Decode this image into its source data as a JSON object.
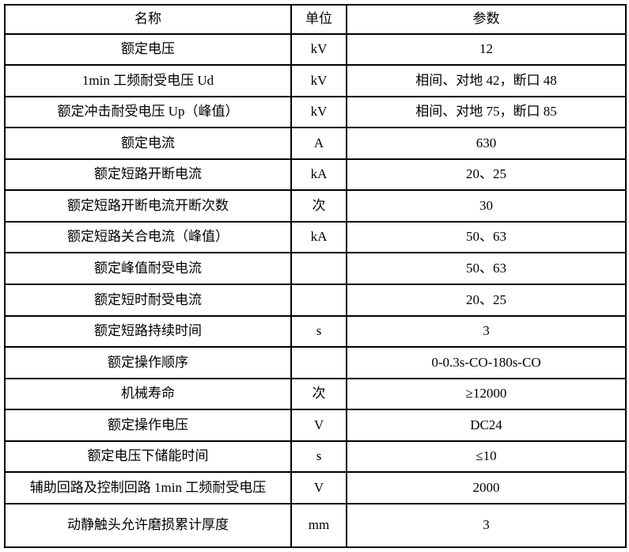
{
  "table": {
    "headers": [
      "名称",
      "单位",
      "参数"
    ],
    "rows": [
      {
        "name": "额定电压",
        "unit": "kV",
        "value": "12"
      },
      {
        "name": "1min 工频耐受电压 Ud",
        "unit": "kV",
        "value": "相间、对地 42，断口 48"
      },
      {
        "name": "额定冲击耐受电压 Up（峰值）",
        "unit": "kV",
        "value": "相间、对地 75，断口 85"
      },
      {
        "name": "额定电流",
        "unit": "A",
        "value": "630"
      },
      {
        "name": "额定短路开断电流",
        "unit": "kA",
        "value": "20、25"
      },
      {
        "name": "额定短路开断电流开断次数",
        "unit": "次",
        "value": "30"
      },
      {
        "name": "额定短路关合电流（峰值）",
        "unit": "kA",
        "value": "50、63"
      },
      {
        "name": "额定峰值耐受电流",
        "unit": "",
        "value": "50、63"
      },
      {
        "name": "额定短时耐受电流",
        "unit": "",
        "value": "20、25"
      },
      {
        "name": "额定短路持续时间",
        "unit": "s",
        "value": "3"
      },
      {
        "name": "额定操作顺序",
        "unit": "",
        "value": "0-0.3s-CO-180s-CO"
      },
      {
        "name": "机械寿命",
        "unit": "次",
        "value": "≥12000"
      },
      {
        "name": "额定操作电压",
        "unit": "V",
        "value": "DC24"
      },
      {
        "name": "额定电压下储能时间",
        "unit": "s",
        "value": "≤10"
      },
      {
        "name": "辅助回路及控制回路 1min 工频耐受电压",
        "unit": "V",
        "value": "2000"
      },
      {
        "name": "动静触头允许磨损累计厚度",
        "unit": "mm",
        "value": "3"
      }
    ],
    "colors": {
      "border": "#000000",
      "text": "#000000",
      "background": "#ffffff"
    }
  }
}
